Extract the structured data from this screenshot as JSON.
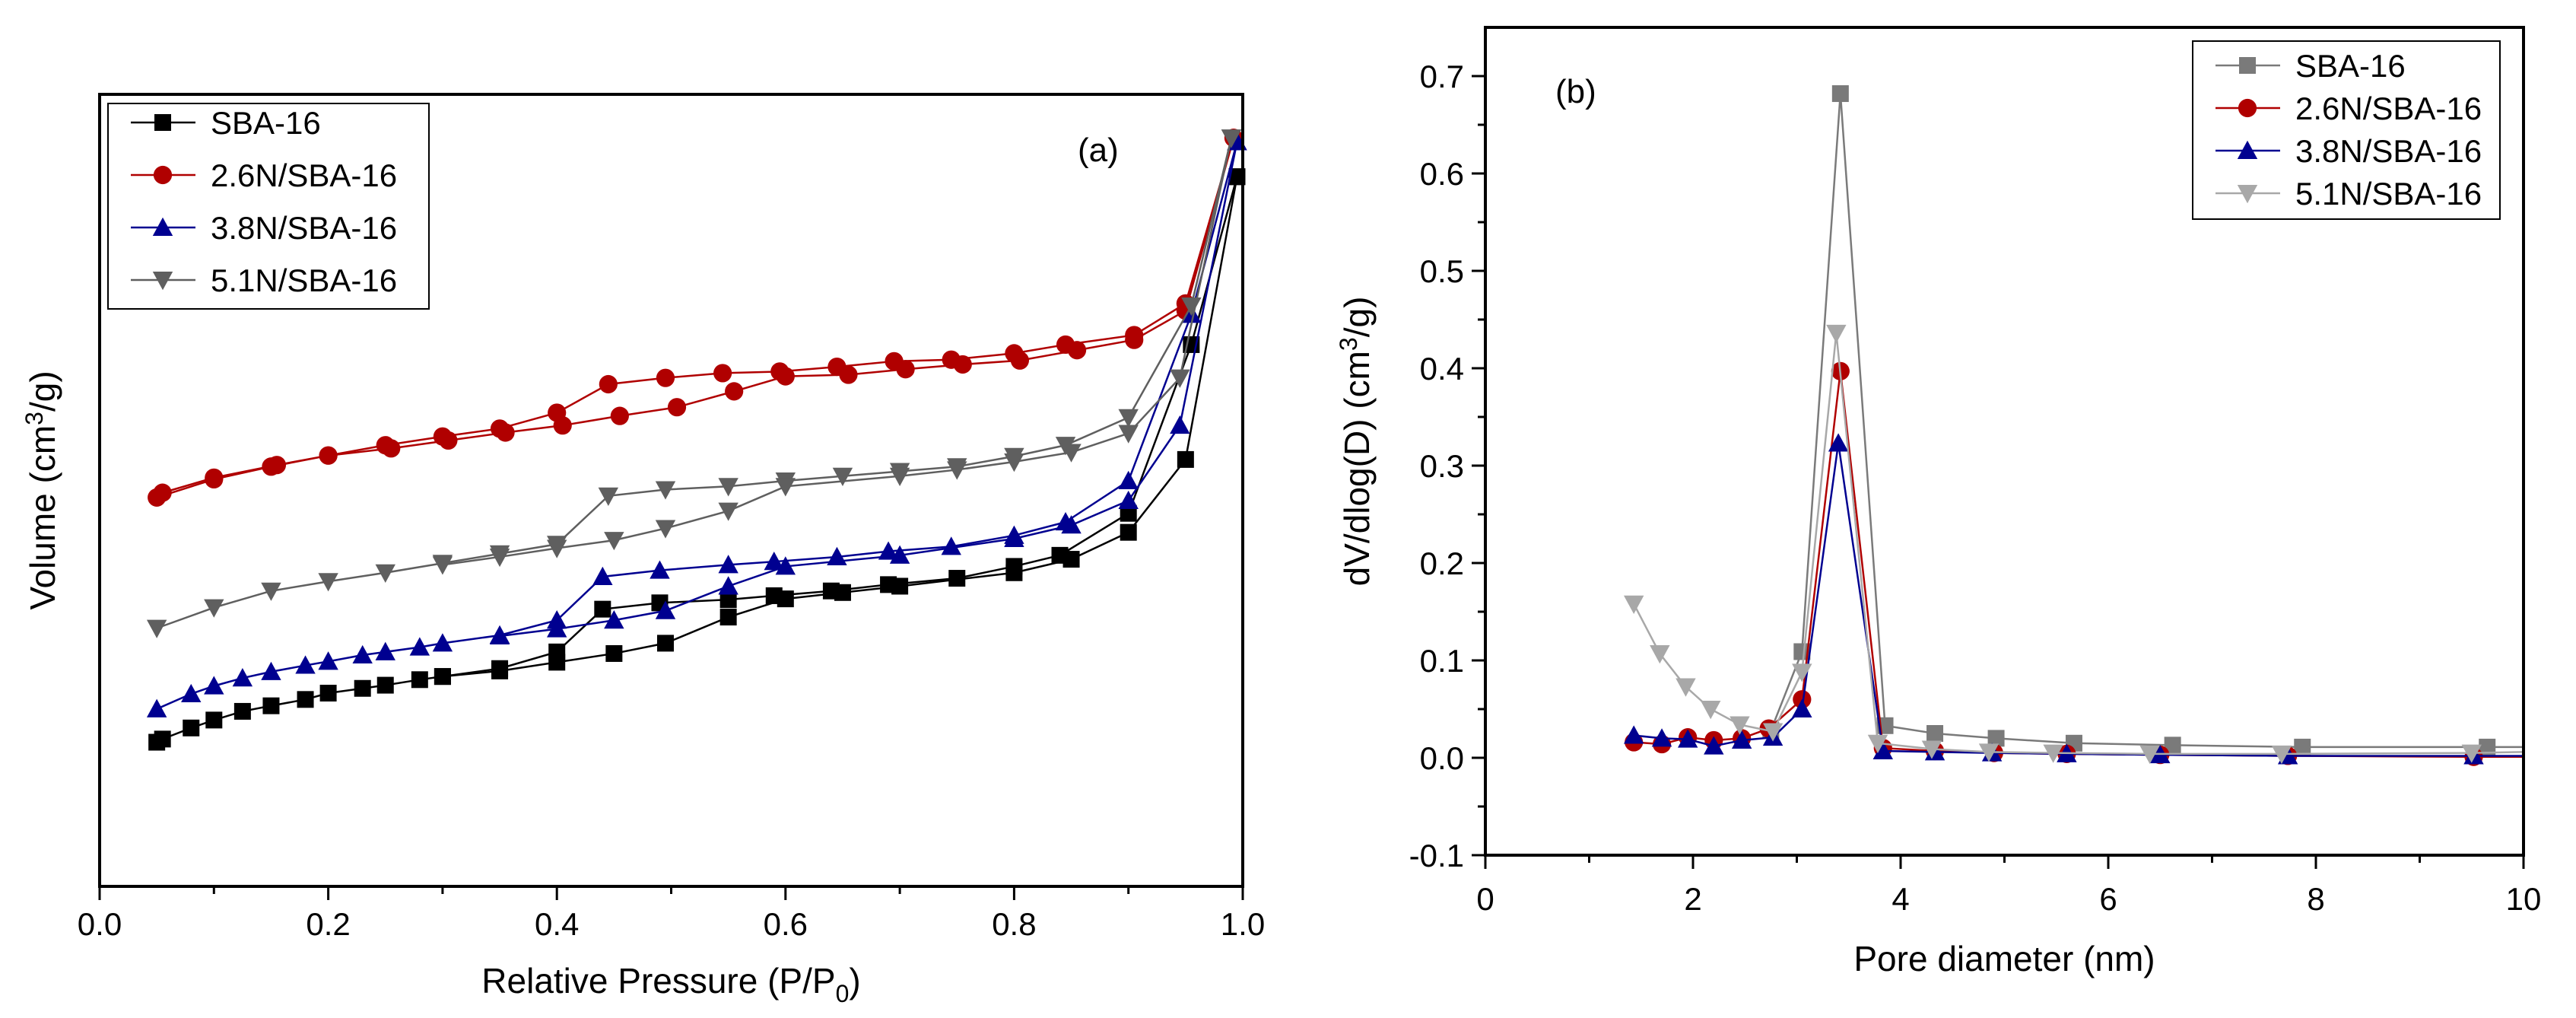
{
  "chart_data": [
    {
      "type": "line",
      "panel_label": "(a)",
      "xlabel": "Relative Pressure (P/P",
      "xlabel_sub": "0",
      "xlabel_end": ")",
      "ylabel": "Volume (cm",
      "ylabel_sup": "3",
      "ylabel_end": "/g)",
      "xlim": [
        0,
        1.0
      ],
      "ylim": [
        0,
        100
      ],
      "y_units": "arbitrary (no tick labels shown)",
      "xticks": [
        "0.0",
        "0.2",
        "0.4",
        "0.6",
        "0.8",
        "1.0"
      ],
      "xtick_values": [
        0,
        0.2,
        0.4,
        0.6,
        0.8,
        1.0
      ],
      "legend_position": "top-left",
      "series": [
        {
          "name": "SBA-16",
          "color": "#000000",
          "marker": "square",
          "adsorption": [
            [
              0.05,
              18.2
            ],
            [
              0.055,
              18.6
            ],
            [
              0.08,
              20.0
            ],
            [
              0.1,
              21.0
            ],
            [
              0.125,
              22.1
            ],
            [
              0.15,
              22.8
            ],
            [
              0.18,
              23.6
            ],
            [
              0.2,
              24.4
            ],
            [
              0.23,
              25.0
            ],
            [
              0.25,
              25.4
            ],
            [
              0.28,
              26.1
            ],
            [
              0.3,
              26.5
            ],
            [
              0.35,
              27.5
            ],
            [
              0.4,
              29.6
            ],
            [
              0.44,
              35.0
            ],
            [
              0.49,
              35.8
            ],
            [
              0.55,
              36.2
            ],
            [
              0.59,
              36.7
            ],
            [
              0.64,
              37.3
            ],
            [
              0.69,
              38.1
            ],
            [
              0.75,
              38.9
            ],
            [
              0.8,
              40.4
            ],
            [
              0.84,
              41.8
            ],
            [
              0.9,
              47.1
            ],
            [
              0.955,
              68.4
            ],
            [
              0.995,
              89.6
            ]
          ],
          "desorption": [
            [
              0.995,
              89.6
            ],
            [
              0.95,
              53.9
            ],
            [
              0.9,
              44.7
            ],
            [
              0.85,
              41.3
            ],
            [
              0.8,
              39.6
            ],
            [
              0.7,
              37.9
            ],
            [
              0.65,
              37.1
            ],
            [
              0.6,
              36.3
            ],
            [
              0.55,
              34.0
            ],
            [
              0.495,
              30.7
            ],
            [
              0.45,
              29.4
            ],
            [
              0.4,
              28.3
            ],
            [
              0.35,
              27.2
            ],
            [
              0.3,
              26.5
            ]
          ]
        },
        {
          "name": "2.6N/SBA-16",
          "color": "#b00000",
          "marker": "circle",
          "adsorption": [
            [
              0.05,
              49.1
            ],
            [
              0.1,
              51.4
            ],
            [
              0.15,
              53.0
            ],
            [
              0.2,
              54.4
            ],
            [
              0.25,
              55.7
            ],
            [
              0.3,
              56.8
            ],
            [
              0.35,
              57.8
            ],
            [
              0.4,
              59.8
            ],
            [
              0.445,
              63.4
            ],
            [
              0.495,
              64.2
            ],
            [
              0.545,
              64.8
            ],
            [
              0.595,
              65.0
            ],
            [
              0.645,
              65.6
            ],
            [
              0.695,
              66.3
            ],
            [
              0.745,
              66.5
            ],
            [
              0.8,
              67.3
            ],
            [
              0.845,
              68.4
            ],
            [
              0.905,
              69.6
            ],
            [
              0.95,
              73.6
            ],
            [
              0.992,
              94.5
            ]
          ],
          "desorption": [
            [
              0.992,
              94.5
            ],
            [
              0.95,
              72.7
            ],
            [
              0.905,
              69.0
            ],
            [
              0.855,
              67.7
            ],
            [
              0.805,
              66.4
            ],
            [
              0.755,
              65.9
            ],
            [
              0.705,
              65.3
            ],
            [
              0.655,
              64.6
            ],
            [
              0.6,
              64.4
            ],
            [
              0.555,
              62.5
            ],
            [
              0.505,
              60.5
            ],
            [
              0.455,
              59.4
            ],
            [
              0.405,
              58.2
            ],
            [
              0.355,
              57.3
            ],
            [
              0.305,
              56.3
            ],
            [
              0.255,
              55.3
            ],
            [
              0.2,
              54.4
            ],
            [
              0.155,
              53.2
            ],
            [
              0.1,
              51.6
            ],
            [
              0.055,
              49.7
            ]
          ]
        },
        {
          "name": "3.8N/SBA-16",
          "color": "#000090",
          "marker": "triangle-up",
          "adsorption": [
            [
              0.05,
              22.4
            ],
            [
              0.08,
              24.3
            ],
            [
              0.1,
              25.3
            ],
            [
              0.125,
              26.3
            ],
            [
              0.15,
              27.1
            ],
            [
              0.18,
              27.9
            ],
            [
              0.2,
              28.4
            ],
            [
              0.23,
              29.2
            ],
            [
              0.25,
              29.6
            ],
            [
              0.28,
              30.2
            ],
            [
              0.3,
              30.7
            ],
            [
              0.35,
              31.7
            ],
            [
              0.4,
              33.6
            ],
            [
              0.44,
              39.1
            ],
            [
              0.49,
              39.9
            ],
            [
              0.55,
              40.6
            ],
            [
              0.59,
              41.0
            ],
            [
              0.645,
              41.6
            ],
            [
              0.69,
              42.3
            ],
            [
              0.745,
              42.9
            ],
            [
              0.8,
              44.3
            ],
            [
              0.845,
              46.0
            ],
            [
              0.9,
              51.2
            ],
            [
              0.955,
              72.2
            ],
            [
              0.995,
              94.0
            ]
          ],
          "desorption": [
            [
              0.995,
              94.0
            ],
            [
              0.945,
              58.2
            ],
            [
              0.9,
              48.7
            ],
            [
              0.85,
              45.6
            ],
            [
              0.8,
              43.9
            ],
            [
              0.7,
              41.8
            ],
            [
              0.6,
              40.4
            ],
            [
              0.55,
              37.9
            ],
            [
              0.495,
              34.8
            ],
            [
              0.45,
              33.6
            ],
            [
              0.4,
              32.5
            ],
            [
              0.35,
              31.6
            ]
          ]
        },
        {
          "name": "5.1N/SBA-16",
          "color": "#5f5f5f",
          "marker": "triangle-down",
          "adsorption": [
            [
              0.05,
              32.6
            ],
            [
              0.1,
              35.2
            ],
            [
              0.15,
              37.3
            ],
            [
              0.2,
              38.5
            ],
            [
              0.25,
              39.6
            ],
            [
              0.3,
              40.8
            ],
            [
              0.35,
              42.0
            ],
            [
              0.4,
              43.2
            ],
            [
              0.445,
              49.3
            ],
            [
              0.495,
              50.1
            ],
            [
              0.55,
              50.5
            ],
            [
              0.6,
              51.2
            ],
            [
              0.65,
              51.8
            ],
            [
              0.7,
              52.4
            ],
            [
              0.75,
              53.0
            ],
            [
              0.8,
              54.3
            ],
            [
              0.845,
              55.7
            ],
            [
              0.9,
              59.2
            ],
            [
              0.955,
              73.3
            ],
            [
              0.99,
              94.5
            ]
          ],
          "desorption": [
            [
              0.99,
              94.5
            ],
            [
              0.945,
              64.2
            ],
            [
              0.9,
              57.2
            ],
            [
              0.85,
              54.8
            ],
            [
              0.8,
              53.6
            ],
            [
              0.75,
              52.6
            ],
            [
              0.7,
              51.8
            ],
            [
              0.6,
              50.5
            ],
            [
              0.55,
              47.4
            ],
            [
              0.495,
              45.2
            ],
            [
              0.45,
              43.7
            ],
            [
              0.4,
              42.7
            ],
            [
              0.35,
              41.6
            ],
            [
              0.3,
              40.6
            ]
          ]
        }
      ]
    },
    {
      "type": "line",
      "panel_label": "(b)",
      "xlabel": "Pore diameter (nm)",
      "ylabel": "dV/dlog(D) (cm",
      "ylabel_sup": "3",
      "ylabel_end": "/g)",
      "xlim": [
        0,
        10
      ],
      "ylim": [
        -0.1,
        0.75
      ],
      "xticks": [
        "0",
        "2",
        "4",
        "6",
        "8",
        "10"
      ],
      "xtick_values": [
        0,
        2,
        4,
        6,
        8,
        10
      ],
      "yticks": [
        "-0.1",
        "0.0",
        "0.1",
        "0.2",
        "0.3",
        "0.4",
        "0.5",
        "0.6",
        "0.7"
      ],
      "ytick_values": [
        -0.1,
        0,
        0.1,
        0.2,
        0.3,
        0.4,
        0.5,
        0.6,
        0.7
      ],
      "legend_position": "top-right",
      "series": [
        {
          "name": "SBA-16",
          "color": "#7a7a7a",
          "marker": "square",
          "points": [
            [
              2.75,
              0.028
            ],
            [
              3.05,
              0.109
            ],
            [
              3.42,
              0.682
            ],
            [
              3.85,
              0.033
            ],
            [
              4.33,
              0.025
            ],
            [
              4.92,
              0.02
            ],
            [
              5.67,
              0.015
            ],
            [
              6.62,
              0.013
            ],
            [
              7.87,
              0.011
            ],
            [
              9.65,
              0.011
            ],
            [
              10,
              0.011
            ]
          ]
        },
        {
          "name": "2.6N/SBA-16",
          "color": "#b00000",
          "marker": "circle",
          "points": [
            [
              1.43,
              0.016
            ],
            [
              1.7,
              0.014
            ],
            [
              1.95,
              0.021
            ],
            [
              2.2,
              0.018
            ],
            [
              2.47,
              0.02
            ],
            [
              2.73,
              0.03
            ],
            [
              3.05,
              0.06
            ],
            [
              3.42,
              0.397
            ],
            [
              3.83,
              0.01
            ],
            [
              4.33,
              0.007
            ],
            [
              4.9,
              0.005
            ],
            [
              5.6,
              0.004
            ],
            [
              6.5,
              0.003
            ],
            [
              7.73,
              0.002
            ],
            [
              9.52,
              0.001
            ],
            [
              10,
              0.001
            ]
          ]
        },
        {
          "name": "3.8N/SBA-16",
          "color": "#000090",
          "marker": "triangle-up",
          "points": [
            [
              1.43,
              0.023
            ],
            [
              1.7,
              0.02
            ],
            [
              1.95,
              0.019
            ],
            [
              2.2,
              0.012
            ],
            [
              2.47,
              0.018
            ],
            [
              2.77,
              0.021
            ],
            [
              3.05,
              0.05
            ],
            [
              3.4,
              0.323
            ],
            [
              3.83,
              0.007
            ],
            [
              4.33,
              0.006
            ],
            [
              4.88,
              0.005
            ],
            [
              5.6,
              0.004
            ],
            [
              6.5,
              0.003
            ],
            [
              7.73,
              0.002
            ],
            [
              9.52,
              0.002
            ],
            [
              10,
              0.002
            ]
          ]
        },
        {
          "name": "5.1N/SBA-16",
          "color": "#a8a8a8",
          "marker": "triangle-down",
          "points": [
            [
              1.43,
              0.158
            ],
            [
              1.68,
              0.107
            ],
            [
              1.93,
              0.073
            ],
            [
              2.17,
              0.05
            ],
            [
              2.45,
              0.034
            ],
            [
              2.77,
              0.027
            ],
            [
              3.05,
              0.088
            ],
            [
              3.38,
              0.436
            ],
            [
              3.78,
              0.015
            ],
            [
              4.3,
              0.009
            ],
            [
              4.85,
              0.006
            ],
            [
              5.47,
              0.005
            ],
            [
              6.4,
              0.004
            ],
            [
              7.67,
              0.004
            ],
            [
              9.5,
              0.005
            ],
            [
              10,
              0.006
            ]
          ]
        }
      ]
    }
  ]
}
